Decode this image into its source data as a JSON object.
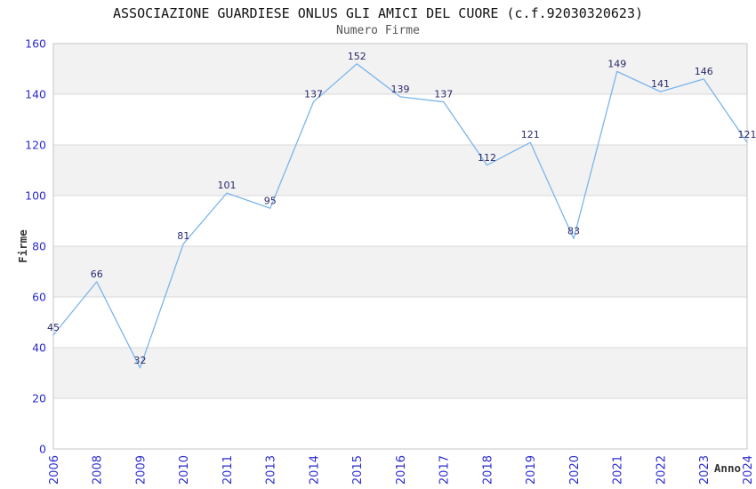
{
  "chart_data": {
    "type": "line",
    "title": "ASSOCIAZIONE GUARDIESE ONLUS GLI AMICI DEL CUORE (c.f.92030320623)",
    "subtitle": "Numero Firme",
    "xlabel": "Anno",
    "ylabel": "Firme",
    "categories": [
      "2006",
      "2008",
      "2009",
      "2010",
      "2011",
      "2013",
      "2014",
      "2015",
      "2016",
      "2017",
      "2018",
      "2019",
      "2020",
      "2021",
      "2022",
      "2023",
      "2024"
    ],
    "values": [
      45,
      66,
      32,
      81,
      101,
      95,
      137,
      152,
      139,
      137,
      112,
      121,
      83,
      149,
      141,
      146,
      121
    ],
    "ylim": [
      0,
      160
    ],
    "ytick_step": 20,
    "yticks": [
      0,
      20,
      40,
      60,
      80,
      100,
      120,
      140,
      160
    ],
    "grid": true,
    "legend": "none",
    "markers": "none",
    "data_labels": "above-points",
    "x_tick_rotation": -90,
    "band_ranges": [
      [
        20,
        40
      ],
      [
        60,
        80
      ],
      [
        100,
        120
      ],
      [
        140,
        160
      ]
    ],
    "colors": {
      "line": "#7cb5ec",
      "data_label": "#29296b",
      "tick_label": "#2b2bd0",
      "axis_title": "#333333",
      "band": "#f2f2f2",
      "grid_line": "#d8d8d8",
      "plot_border": "#c6c6c6",
      "background": "#ffffff",
      "title": "#111111",
      "subtitle": "#555555"
    }
  }
}
